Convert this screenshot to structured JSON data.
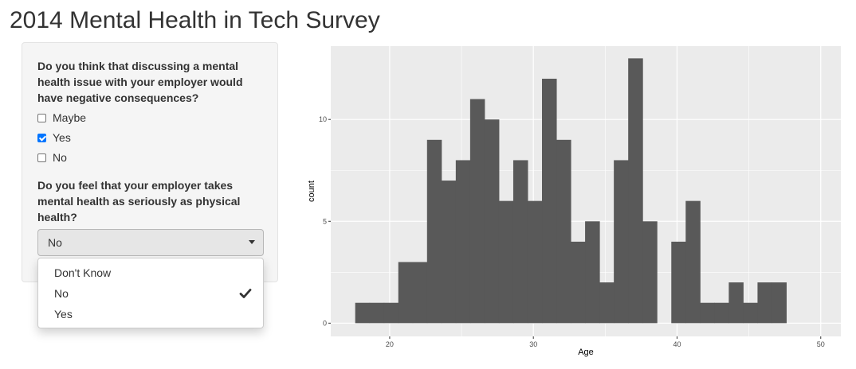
{
  "app": {
    "title": "2014 Mental Health in Tech Survey"
  },
  "sidebar": {
    "question1": {
      "label": "Do you think that discussing a mental health issue with your employer would have negative consequences?",
      "options": [
        {
          "label": "Maybe",
          "checked": false
        },
        {
          "label": "Yes",
          "checked": true
        },
        {
          "label": "No",
          "checked": false
        }
      ]
    },
    "question2": {
      "label": "Do you feel that your employer takes mental health as seriously as physical health?",
      "selected": "No",
      "dropdown_open": true,
      "options": [
        {
          "label": "Don't Know",
          "selected": false
        },
        {
          "label": "No",
          "selected": true
        },
        {
          "label": "Yes",
          "selected": false
        }
      ]
    }
  },
  "colors": {
    "panel_background": "#ebebeb",
    "gridline": "#ffffff",
    "bar_fill": "#595959",
    "checkbox_accent": "#0075ff"
  },
  "icons": {
    "select_caret": "caret-down-icon",
    "selected_option": "check-icon"
  },
  "chart_data": {
    "type": "bar",
    "subtype": "histogram",
    "xlabel": "Age",
    "ylabel": "count",
    "xlim": [
      15.9,
      51.4
    ],
    "ylim": [
      -0.65,
      13.6
    ],
    "x_ticks": [
      20,
      30,
      40,
      50
    ],
    "y_ticks": [
      0,
      5,
      10
    ],
    "x_tick_labels": [
      "20",
      "30",
      "40",
      "50"
    ],
    "y_tick_labels": [
      "0",
      "5",
      "10"
    ],
    "grid": true,
    "bin_start": 17.6,
    "bin_width": 1,
    "values": [
      1,
      1,
      1,
      3,
      3,
      9,
      7,
      8,
      11,
      10,
      6,
      8,
      6,
      12,
      9,
      4,
      5,
      2,
      8,
      13,
      5,
      0,
      4,
      6,
      1,
      1,
      2,
      1,
      2,
      2
    ]
  }
}
